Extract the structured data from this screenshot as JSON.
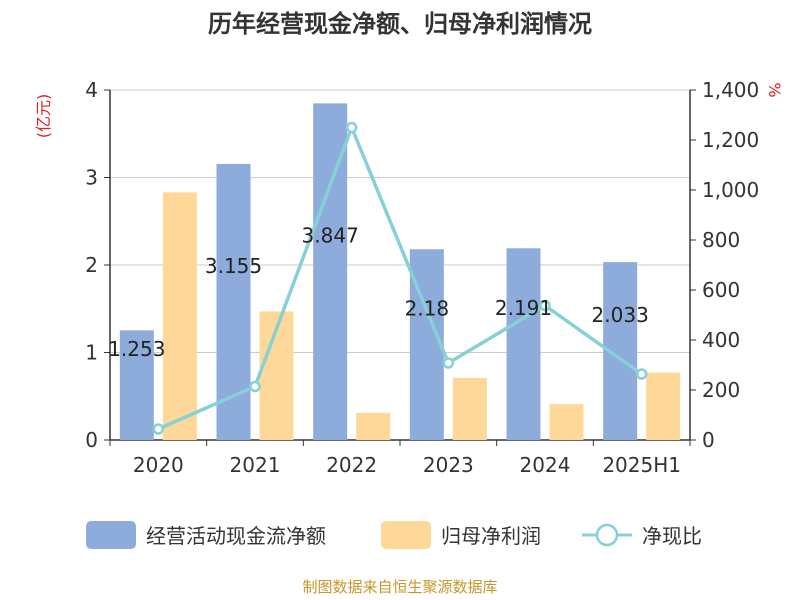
{
  "chart_data": {
    "type": "bar",
    "title": "历年经营现金净额、归母净利润情况",
    "categories": [
      "2020",
      "2021",
      "2022",
      "2023",
      "2024",
      "2025H1"
    ],
    "left_axis": {
      "unit": "(亿元)",
      "ylim": [
        0,
        4
      ],
      "ticks": [
        "0",
        "1",
        "2",
        "3",
        "4"
      ]
    },
    "right_axis": {
      "unit": "%",
      "ylim": [
        0,
        1400
      ],
      "ticks": [
        "0",
        "200",
        "400",
        "600",
        "800",
        "1,000",
        "1,200",
        "1,400"
      ]
    },
    "series": [
      {
        "name": "经营活动现金流净额",
        "kind": "bar",
        "axis": "left",
        "color": "#8eacdb",
        "values": [
          1.253,
          3.155,
          3.847,
          2.18,
          2.191,
          2.033
        ],
        "labels": [
          "1.253",
          "3.155",
          "3.847",
          "2.18",
          "2.191",
          "2.033"
        ]
      },
      {
        "name": "归母净利润",
        "kind": "bar",
        "axis": "left",
        "color": "#fdd898",
        "values": [
          2.83,
          1.47,
          0.31,
          0.71,
          0.41,
          0.77
        ]
      },
      {
        "name": "净现比",
        "kind": "line",
        "axis": "right",
        "color": "#86d0d6",
        "values": [
          44,
          214,
          1250,
          308,
          538,
          264
        ]
      }
    ],
    "grid": true,
    "legend_position": "bottom"
  },
  "source": "制图数据来自恒生聚源数据库"
}
